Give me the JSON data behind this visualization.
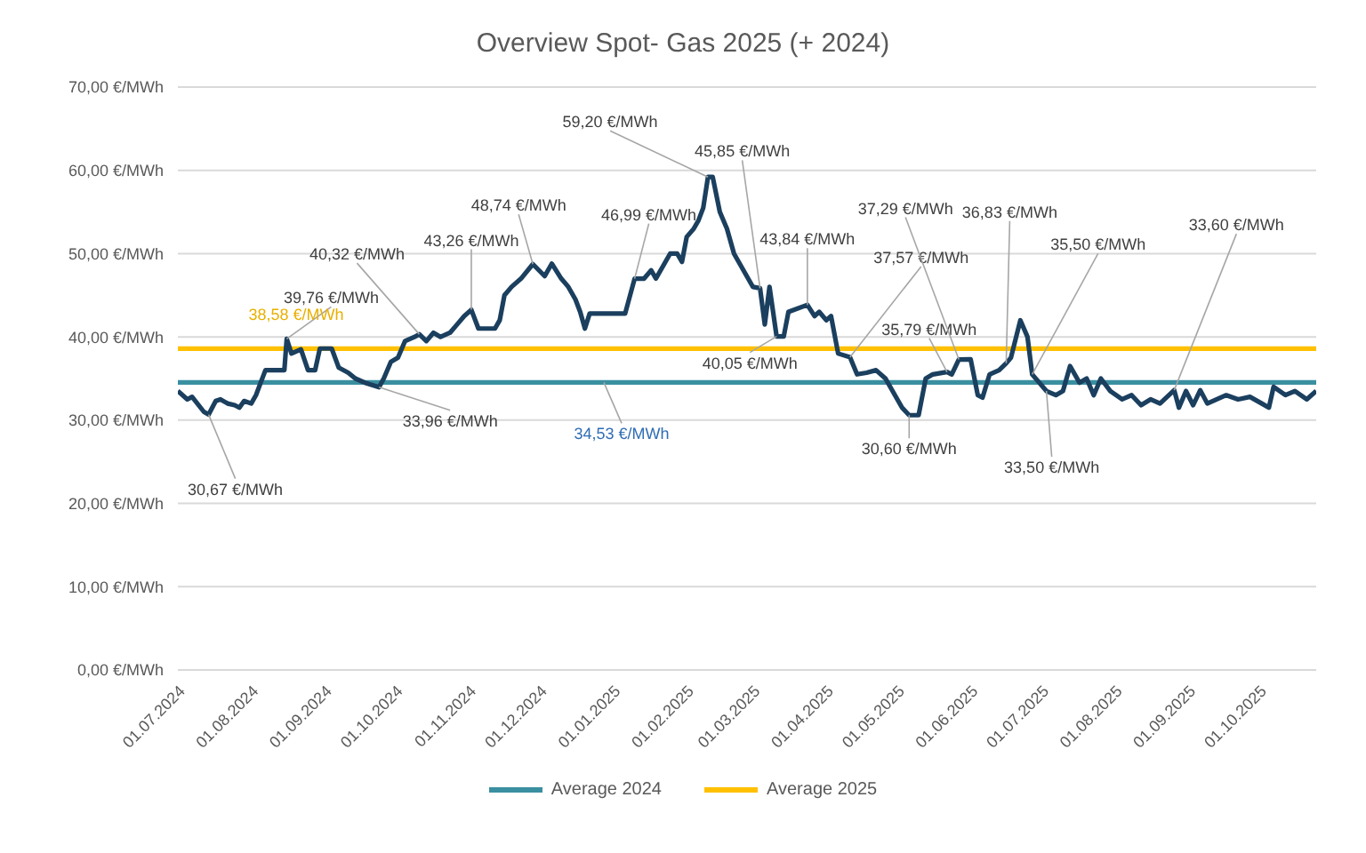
{
  "chart_data": {
    "type": "line",
    "title": "Overview Spot- Gas 2025 (+ 2024)",
    "xlim": [
      "2024-07-01",
      "2025-10-25"
    ],
    "xticks": [
      {
        "value": "2024-07-01",
        "label": "01.07.2024"
      },
      {
        "value": "2024-08-01",
        "label": "01.08.2024"
      },
      {
        "value": "2024-09-01",
        "label": "01.09.2024"
      },
      {
        "value": "2024-10-01",
        "label": "01.10.2024"
      },
      {
        "value": "2024-11-01",
        "label": "01.11.2024"
      },
      {
        "value": "2024-12-01",
        "label": "01.12.2024"
      },
      {
        "value": "2025-01-01",
        "label": "01.01.2025"
      },
      {
        "value": "2025-02-01",
        "label": "01.02.2025"
      },
      {
        "value": "2025-03-01",
        "label": "01.03.2025"
      },
      {
        "value": "2025-04-01",
        "label": "01.04.2025"
      },
      {
        "value": "2025-05-01",
        "label": "01.05.2025"
      },
      {
        "value": "2025-06-01",
        "label": "01.06.2025"
      },
      {
        "value": "2025-07-01",
        "label": "01.07.2025"
      },
      {
        "value": "2025-08-01",
        "label": "01.08.2025"
      },
      {
        "value": "2025-09-01",
        "label": "01.09.2025"
      },
      {
        "value": "2025-10-01",
        "label": "01.10.2025"
      }
    ],
    "ylim": [
      0,
      70
    ],
    "yticks": [
      {
        "value": 0,
        "label": "0,00 €/MWh"
      },
      {
        "value": 10,
        "label": "10,00 €/MWh"
      },
      {
        "value": 20,
        "label": "20,00 €/MWh"
      },
      {
        "value": 30,
        "label": "30,00 €/MWh"
      },
      {
        "value": 40,
        "label": "40,00 €/MWh"
      },
      {
        "value": 50,
        "label": "50,00 €/MWh"
      },
      {
        "value": 60,
        "label": "60,00 €/MWh"
      },
      {
        "value": 70,
        "label": "70,00 €/MWh"
      }
    ],
    "grid": "y",
    "legend": "bottom",
    "marker": "none",
    "series": [
      {
        "color": "#1b3f5e",
        "x": [
          "2024-07-01",
          "2024-07-03",
          "2024-07-05",
          "2024-07-07",
          "2024-07-12",
          "2024-07-14",
          "2024-07-17",
          "2024-07-19",
          "2024-07-22",
          "2024-07-25",
          "2024-07-27",
          "2024-07-29",
          "2024-08-01",
          "2024-08-03",
          "2024-08-05",
          "2024-08-07",
          "2024-08-15",
          "2024-08-16",
          "2024-08-18",
          "2024-08-22",
          "2024-08-25",
          "2024-08-28",
          "2024-08-30",
          "2024-09-04",
          "2024-09-07",
          "2024-09-11",
          "2024-09-14",
          "2024-09-18",
          "2024-09-24",
          "2024-09-26",
          "2024-09-29",
          "2024-10-02",
          "2024-10-05",
          "2024-10-09",
          "2024-10-11",
          "2024-10-14",
          "2024-10-17",
          "2024-10-20",
          "2024-10-24",
          "2024-10-27",
          "2024-10-30",
          "2024-11-02",
          "2024-11-05",
          "2024-11-12",
          "2024-11-14",
          "2024-11-16",
          "2024-11-19",
          "2024-11-23",
          "2024-11-28",
          "2024-12-03",
          "2024-12-06",
          "2024-12-10",
          "2024-12-13",
          "2024-12-16",
          "2024-12-18",
          "2024-12-20",
          "2024-12-22",
          "2025-01-06",
          "2025-01-10",
          "2025-01-14",
          "2025-01-17",
          "2025-01-19",
          "2025-01-22",
          "2025-01-25",
          "2025-01-28",
          "2025-01-30",
          "2025-02-01",
          "2025-02-04",
          "2025-02-06",
          "2025-02-08",
          "2025-02-10",
          "2025-02-12",
          "2025-02-15",
          "2025-02-18",
          "2025-02-21",
          "2025-02-25",
          "2025-03-01",
          "2025-03-04",
          "2025-03-06",
          "2025-03-08",
          "2025-03-11",
          "2025-03-14",
          "2025-03-16",
          "2025-03-24",
          "2025-03-27",
          "2025-03-29",
          "2025-04-01",
          "2025-04-03",
          "2025-04-06",
          "2025-04-11",
          "2025-04-14",
          "2025-04-18",
          "2025-04-22",
          "2025-04-26",
          "2025-04-30",
          "2025-05-03",
          "2025-05-06",
          "2025-05-10",
          "2025-05-13",
          "2025-05-16",
          "2025-05-22",
          "2025-05-24",
          "2025-05-27",
          "2025-06-01",
          "2025-06-04",
          "2025-06-06",
          "2025-06-09",
          "2025-06-13",
          "2025-06-16",
          "2025-06-18",
          "2025-06-22",
          "2025-06-25",
          "2025-06-27",
          "2025-07-03",
          "2025-07-07",
          "2025-07-10",
          "2025-07-13",
          "2025-07-17",
          "2025-07-20",
          "2025-07-23",
          "2025-07-26",
          "2025-07-30",
          "2025-08-04",
          "2025-08-08",
          "2025-08-12",
          "2025-08-16",
          "2025-08-20",
          "2025-08-26",
          "2025-08-28",
          "2025-08-31",
          "2025-09-03",
          "2025-09-06",
          "2025-09-09",
          "2025-09-13",
          "2025-09-17",
          "2025-09-22",
          "2025-09-27",
          "2025-10-02",
          "2025-10-05",
          "2025-10-07",
          "2025-10-12",
          "2025-10-16",
          "2025-10-21",
          "2025-10-25"
        ],
        "values": [
          33.5,
          33,
          32.5,
          32.8,
          31,
          30.67,
          32.3,
          32.5,
          32,
          31.8,
          31.5,
          32.3,
          32,
          33,
          34.5,
          36,
          36,
          39.76,
          38,
          38.5,
          36,
          36,
          38.6,
          38.6,
          36.3,
          35.7,
          35,
          34.5,
          33.96,
          35,
          37,
          37.5,
          39.5,
          40,
          40.32,
          39.5,
          40.5,
          40,
          40.5,
          41.5,
          42.5,
          43.26,
          41,
          41,
          42,
          45,
          46,
          47,
          48.74,
          47.3,
          48.8,
          47,
          46,
          44.5,
          43,
          41,
          42.8,
          42.8,
          46.99,
          47,
          48,
          47,
          48.5,
          50,
          50,
          49,
          52,
          53,
          54,
          55.5,
          59.2,
          59.2,
          55,
          53,
          50,
          48,
          46,
          45.85,
          41.5,
          46,
          40.05,
          40.05,
          43,
          43.84,
          42.5,
          43,
          42,
          42.5,
          38,
          37.57,
          35.5,
          35.7,
          36,
          35,
          33,
          31.5,
          30.6,
          30.6,
          35,
          35.5,
          35.79,
          35.5,
          37.29,
          37.3,
          33,
          32.7,
          35.5,
          36,
          36.83,
          37.5,
          42,
          40,
          35.5,
          33.5,
          33,
          33.5,
          36.5,
          34.5,
          35,
          33,
          35,
          33.5,
          32.5,
          33,
          31.8,
          32.5,
          32,
          33.6,
          31.5,
          33.5,
          31.8,
          33.6,
          32,
          32.5,
          33,
          32.5,
          32.8,
          32,
          31.5,
          34,
          33,
          33.5,
          32.5,
          33.5
        ]
      },
      {
        "name": "Average 2024",
        "color": "#3a8fa0",
        "x": [
          "2024-07-01",
          "2025-10-25"
        ],
        "values": [
          34.53,
          34.53
        ]
      },
      {
        "name": "Average 2025",
        "color": "#ffc000",
        "x": [
          "2024-07-01",
          "2025-10-25"
        ],
        "values": [
          38.58,
          38.58
        ]
      }
    ],
    "annotations": [
      {
        "text": "30,67 €/MWh",
        "x": "2024-07-14",
        "y": 30.67
      },
      {
        "text": "39,76 €/MWh",
        "x": "2024-08-16",
        "y": 39.76
      },
      {
        "text": "38,58 €/MWh",
        "x": "2024-08-20",
        "y": 38.58
      },
      {
        "text": "33,96 €/MWh",
        "x": "2024-09-24",
        "y": 33.96
      },
      {
        "text": "40,32 €/MWh",
        "x": "2024-10-11",
        "y": 40.32
      },
      {
        "text": "43,26 €/MWh",
        "x": "2024-11-02",
        "y": 43.26
      },
      {
        "text": "48,74 €/MWh",
        "x": "2024-11-28",
        "y": 48.74
      },
      {
        "text": "34,53 €/MWh",
        "x": "2024-12-28",
        "y": 34.53
      },
      {
        "text": "46,99 €/MWh",
        "x": "2025-01-10",
        "y": 46.99
      },
      {
        "text": "59,20 €/MWh",
        "x": "2025-02-10",
        "y": 59.2
      },
      {
        "text": "45,85 €/MWh",
        "x": "2025-03-04",
        "y": 45.85
      },
      {
        "text": "40,05 €/MWh",
        "x": "2025-03-11",
        "y": 40.05
      },
      {
        "text": "43,84 €/MWh",
        "x": "2025-03-24",
        "y": 43.84
      },
      {
        "text": "37,57 €/MWh",
        "x": "2025-04-11",
        "y": 37.57
      },
      {
        "text": "30,60 €/MWh",
        "x": "2025-05-06",
        "y": 30.6
      },
      {
        "text": "35,79 €/MWh",
        "x": "2025-05-22",
        "y": 35.79
      },
      {
        "text": "37,29 €/MWh",
        "x": "2025-05-27",
        "y": 37.29
      },
      {
        "text": "36,83 €/MWh",
        "x": "2025-06-16",
        "y": 36.83
      },
      {
        "text": "35,50 €/MWh",
        "x": "2025-06-27",
        "y": 35.5
      },
      {
        "text": "33,50 €/MWh",
        "x": "2025-07-03",
        "y": 33.5
      },
      {
        "text": "33,60 €/MWh",
        "x": "2025-08-26",
        "y": 33.6
      }
    ]
  }
}
